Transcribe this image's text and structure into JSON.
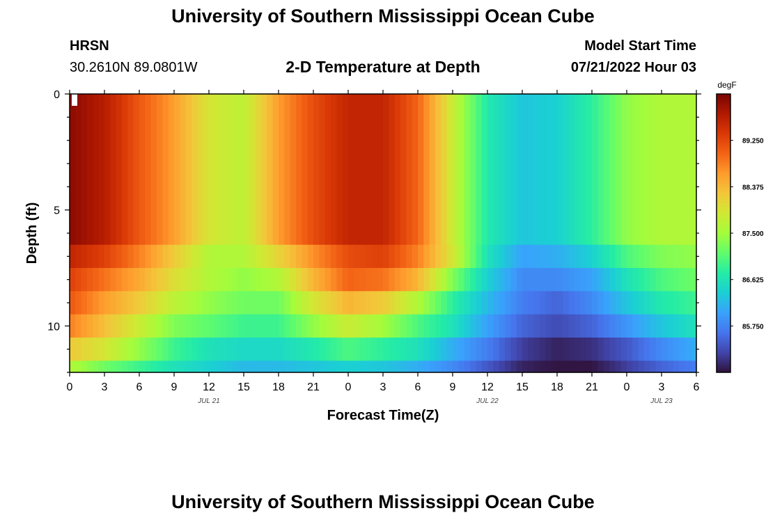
{
  "header": {
    "title": "University of Southern Mississippi Ocean Cube",
    "station": "HRSN",
    "coordinates": "30.2610N  89.0801W",
    "subtitle": "2-D Temperature at Depth",
    "start_label": "Model Start Time",
    "start_value": "07/21/2022 Hour 03"
  },
  "footer": {
    "title": "University of Southern Mississippi Ocean Cube"
  },
  "colors": {
    "colormap": [
      "#30123b",
      "#4145ab",
      "#4675ed",
      "#39a2fc",
      "#1bcfd4",
      "#24eca6",
      "#61fc6c",
      "#a4fc3b",
      "#d1e834",
      "#f3c63a",
      "#fe9b2d",
      "#f36315",
      "#d93806",
      "#b11901",
      "#7a0402"
    ]
  },
  "chart_data": {
    "type": "heatmap",
    "title": "2-D Temperature at Depth",
    "xlabel": "Forecast Time(Z)",
    "ylabel": "Depth (ft)",
    "x_hours_range": [
      0,
      54
    ],
    "x_tick_hours": [
      0,
      3,
      6,
      9,
      12,
      15,
      18,
      21,
      24,
      27,
      30,
      33,
      36,
      39,
      42,
      45,
      48,
      51,
      54
    ],
    "x_tick_labels": [
      "0",
      "3",
      "6",
      "9",
      "12",
      "15",
      "18",
      "21",
      "0",
      "3",
      "6",
      "9",
      "12",
      "15",
      "18",
      "21",
      "0",
      "3",
      "6"
    ],
    "date_labels": [
      {
        "hour": 12,
        "label": "JUL 21"
      },
      {
        "hour": 36,
        "label": "JUL 22"
      },
      {
        "hour": 51,
        "label": "JUL 23"
      }
    ],
    "ylim": [
      0,
      12
    ],
    "y_ticks": [
      0,
      5,
      10
    ],
    "y_tick_labels": [
      "0",
      "5",
      "10"
    ],
    "unit": "degF",
    "colorbar_range": [
      84.875,
      90.125
    ],
    "colorbar_ticks": [
      85.75,
      86.625,
      87.5,
      88.375,
      89.25
    ],
    "colorbar_tick_labels": [
      "85.750",
      "86.625",
      "87.500",
      "88.375",
      "89.250"
    ],
    "series_hours": [
      0,
      3,
      6,
      9,
      12,
      15,
      18,
      21,
      24,
      27,
      30,
      33,
      36,
      39,
      42,
      45,
      48,
      51,
      54
    ],
    "layers": [
      {
        "depth_range": [
          0,
          6.5
        ],
        "values": [
          90.0,
          89.7,
          89.1,
          88.6,
          87.9,
          87.7,
          88.6,
          89.2,
          89.6,
          89.6,
          89.0,
          87.8,
          86.7,
          86.3,
          86.4,
          86.8,
          87.4,
          87.6,
          87.6
        ]
      },
      {
        "depth_range": [
          6.5,
          7.5
        ],
        "values": [
          89.6,
          89.3,
          88.8,
          88.2,
          87.6,
          87.6,
          88.1,
          88.7,
          89.2,
          89.3,
          88.8,
          87.9,
          86.6,
          86.0,
          86.1,
          86.4,
          87.0,
          87.3,
          87.4
        ]
      },
      {
        "depth_range": [
          7.5,
          8.5
        ],
        "values": [
          89.3,
          88.9,
          88.5,
          88.0,
          87.6,
          87.4,
          87.6,
          88.4,
          89.0,
          88.9,
          88.4,
          87.3,
          86.4,
          85.8,
          85.8,
          86.0,
          86.6,
          87.0,
          87.2
        ]
      },
      {
        "depth_range": [
          8.5,
          9.5
        ],
        "values": [
          89.1,
          88.6,
          88.2,
          87.7,
          87.4,
          87.2,
          87.2,
          87.9,
          88.4,
          88.2,
          87.6,
          86.8,
          86.2,
          85.7,
          85.5,
          85.8,
          86.3,
          86.7,
          86.9
        ]
      },
      {
        "depth_range": [
          9.5,
          10.5
        ],
        "values": [
          88.8,
          88.3,
          87.8,
          87.3,
          87.1,
          86.9,
          86.9,
          87.4,
          87.8,
          87.5,
          87.0,
          86.6,
          86.0,
          85.5,
          85.3,
          85.5,
          85.9,
          86.3,
          86.6
        ]
      },
      {
        "depth_range": [
          10.5,
          11.5
        ],
        "values": [
          88.2,
          87.9,
          87.4,
          86.9,
          86.6,
          86.5,
          86.5,
          86.7,
          87.0,
          86.8,
          86.6,
          86.1,
          85.7,
          85.2,
          85.0,
          85.1,
          85.4,
          85.8,
          86.1
        ]
      },
      {
        "depth_range": [
          11.5,
          12
        ],
        "values": [
          87.6,
          87.2,
          86.9,
          86.6,
          86.4,
          86.2,
          86.2,
          86.3,
          86.4,
          86.3,
          86.1,
          85.8,
          85.4,
          85.0,
          84.9,
          84.9,
          85.2,
          85.5,
          85.7
        ]
      }
    ]
  }
}
